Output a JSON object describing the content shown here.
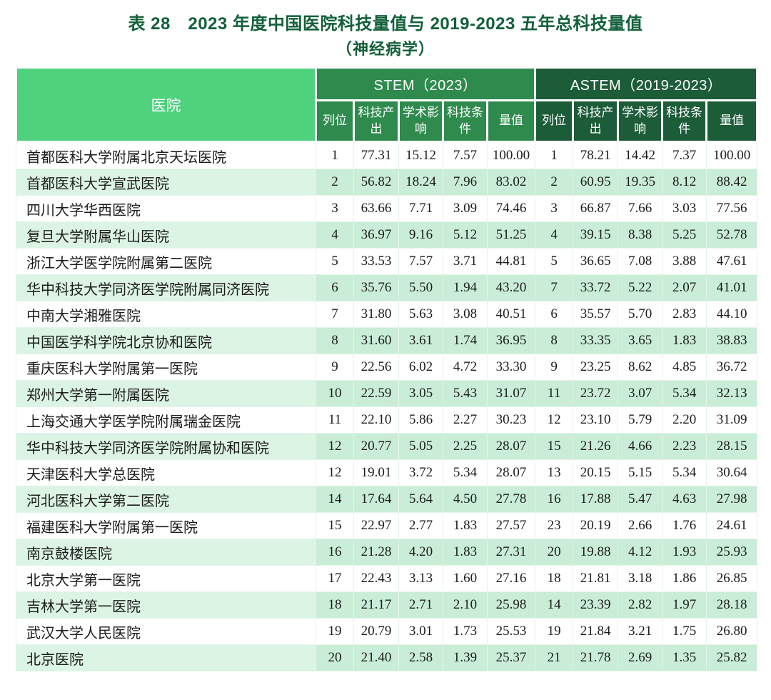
{
  "title": {
    "line1": "表 28　2023 年度中国医院科技量值与 2019-2023 五年总科技量值",
    "line2": "（神经病学）"
  },
  "colors": {
    "title-green": "#12603a",
    "hospital-green": "#4fd17e",
    "stem-green": "#2e8b4d",
    "astem-green": "#1d5c38",
    "stripe-num": "#c9edd6",
    "stripe-hosp": "#dcf4e4",
    "grid-line": "#e4f4ea"
  },
  "table": {
    "hospital_header": "医院",
    "groups": [
      {
        "label": "STEM（2023）"
      },
      {
        "label": "ASTEM（2019-2023）"
      }
    ],
    "sub_headers": [
      "列位",
      "科技产出",
      "学术影响",
      "科技条件",
      "量值"
    ],
    "rows": [
      {
        "name": "首都医科大学附属北京天坛医院",
        "stem": [
          "1",
          "77.31",
          "15.12",
          "7.57",
          "100.00"
        ],
        "astem": [
          "1",
          "78.21",
          "14.42",
          "7.37",
          "100.00"
        ]
      },
      {
        "name": "首都医科大学宣武医院",
        "stem": [
          "2",
          "56.82",
          "18.24",
          "7.96",
          "83.02"
        ],
        "astem": [
          "2",
          "60.95",
          "19.35",
          "8.12",
          "88.42"
        ]
      },
      {
        "name": "四川大学华西医院",
        "stem": [
          "3",
          "63.66",
          "7.71",
          "3.09",
          "74.46"
        ],
        "astem": [
          "3",
          "66.87",
          "7.66",
          "3.03",
          "77.56"
        ]
      },
      {
        "name": "复旦大学附属华山医院",
        "stem": [
          "4",
          "36.97",
          "9.16",
          "5.12",
          "51.25"
        ],
        "astem": [
          "4",
          "39.15",
          "8.38",
          "5.25",
          "52.78"
        ]
      },
      {
        "name": "浙江大学医学院附属第二医院",
        "stem": [
          "5",
          "33.53",
          "7.57",
          "3.71",
          "44.81"
        ],
        "astem": [
          "5",
          "36.65",
          "7.08",
          "3.88",
          "47.61"
        ]
      },
      {
        "name": "华中科技大学同济医学院附属同济医院",
        "stem": [
          "6",
          "35.76",
          "5.50",
          "1.94",
          "43.20"
        ],
        "astem": [
          "7",
          "33.72",
          "5.22",
          "2.07",
          "41.01"
        ]
      },
      {
        "name": "中南大学湘雅医院",
        "stem": [
          "7",
          "31.80",
          "5.63",
          "3.08",
          "40.51"
        ],
        "astem": [
          "6",
          "35.57",
          "5.70",
          "2.83",
          "44.10"
        ]
      },
      {
        "name": "中国医学科学院北京协和医院",
        "stem": [
          "8",
          "31.60",
          "3.61",
          "1.74",
          "36.95"
        ],
        "astem": [
          "8",
          "33.35",
          "3.65",
          "1.83",
          "38.83"
        ]
      },
      {
        "name": "重庆医科大学附属第一医院",
        "stem": [
          "9",
          "22.56",
          "6.02",
          "4.72",
          "33.30"
        ],
        "astem": [
          "9",
          "23.25",
          "8.62",
          "4.85",
          "36.72"
        ]
      },
      {
        "name": "郑州大学第一附属医院",
        "stem": [
          "10",
          "22.59",
          "3.05",
          "5.43",
          "31.07"
        ],
        "astem": [
          "11",
          "23.72",
          "3.07",
          "5.34",
          "32.13"
        ]
      },
      {
        "name": "上海交通大学医学院附属瑞金医院",
        "stem": [
          "11",
          "22.10",
          "5.86",
          "2.27",
          "30.23"
        ],
        "astem": [
          "12",
          "23.10",
          "5.79",
          "2.20",
          "31.09"
        ]
      },
      {
        "name": "华中科技大学同济医学院附属协和医院",
        "stem": [
          "12",
          "20.77",
          "5.05",
          "2.25",
          "28.07"
        ],
        "astem": [
          "15",
          "21.26",
          "4.66",
          "2.23",
          "28.15"
        ]
      },
      {
        "name": "天津医科大学总医院",
        "stem": [
          "12",
          "19.01",
          "3.72",
          "5.34",
          "28.07"
        ],
        "astem": [
          "13",
          "20.15",
          "5.15",
          "5.34",
          "30.64"
        ]
      },
      {
        "name": "河北医科大学第二医院",
        "stem": [
          "14",
          "17.64",
          "5.64",
          "4.50",
          "27.78"
        ],
        "astem": [
          "16",
          "17.88",
          "5.47",
          "4.63",
          "27.98"
        ]
      },
      {
        "name": "福建医科大学附属第一医院",
        "stem": [
          "15",
          "22.97",
          "2.77",
          "1.83",
          "27.57"
        ],
        "astem": [
          "23",
          "20.19",
          "2.66",
          "1.76",
          "24.61"
        ]
      },
      {
        "name": "南京鼓楼医院",
        "stem": [
          "16",
          "21.28",
          "4.20",
          "1.83",
          "27.31"
        ],
        "astem": [
          "20",
          "19.88",
          "4.12",
          "1.93",
          "25.93"
        ]
      },
      {
        "name": "北京大学第一医院",
        "stem": [
          "17",
          "22.43",
          "3.13",
          "1.60",
          "27.16"
        ],
        "astem": [
          "18",
          "21.81",
          "3.18",
          "1.86",
          "26.85"
        ]
      },
      {
        "name": "吉林大学第一医院",
        "stem": [
          "18",
          "21.17",
          "2.71",
          "2.10",
          "25.98"
        ],
        "astem": [
          "14",
          "23.39",
          "2.82",
          "1.97",
          "28.18"
        ]
      },
      {
        "name": "武汉大学人民医院",
        "stem": [
          "19",
          "20.79",
          "3.01",
          "1.73",
          "25.53"
        ],
        "astem": [
          "19",
          "21.84",
          "3.21",
          "1.75",
          "26.80"
        ]
      },
      {
        "name": "北京医院",
        "stem": [
          "20",
          "21.40",
          "2.58",
          "1.39",
          "25.37"
        ],
        "astem": [
          "21",
          "21.78",
          "2.69",
          "1.35",
          "25.82"
        ]
      }
    ]
  }
}
